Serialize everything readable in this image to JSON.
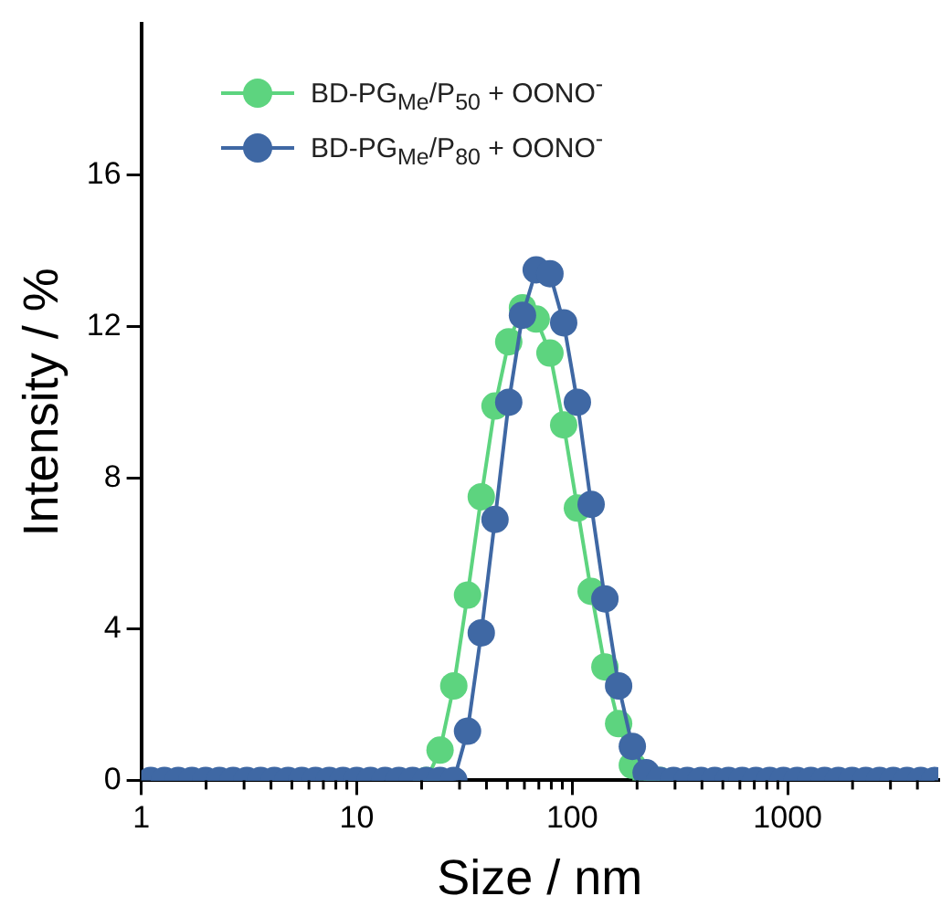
{
  "chart_data": {
    "type": "line",
    "xlabel": "Size / nm",
    "ylabel": "Intensity / %",
    "log": "x",
    "xlim": [
      1,
      5000
    ],
    "xticks": [
      1,
      10,
      100,
      1000
    ],
    "ylim": [
      0,
      20
    ],
    "yticks": [
      0,
      4,
      8,
      12,
      16
    ],
    "grid": false,
    "legend": "top left",
    "marker": "circle",
    "line_style": "solid",
    "x": [
      1.106,
      1.281,
      1.484,
      1.718,
      1.99,
      2.305,
      2.669,
      3.091,
      3.58,
      4.145,
      4.801,
      5.56,
      6.439,
      7.456,
      8.635,
      10.0,
      11.58,
      13.54,
      15.69,
      18.17,
      21.04,
      24.36,
      28.21,
      32.67,
      37.84,
      43.82,
      50.75,
      58.77,
      68.06,
      78.82,
      91.28,
      105.7,
      122.4,
      141.8,
      164.2,
      190.1,
      220.2,
      255.0,
      295.3,
      342.0,
      396.1,
      458.7,
      531.2,
      615.1,
      712.4,
      825.0,
      955.4,
      1106,
      1281,
      1484,
      1718,
      1990,
      2305,
      2669,
      3091,
      3580,
      4145,
      4801
    ],
    "series": [
      {
        "name": "BD-PG$_{Me}$/P$_{50}$ + OONO$^{-}$",
        "color": "#5dd47f",
        "values": [
          null,
          null,
          null,
          null,
          null,
          null,
          null,
          null,
          null,
          null,
          null,
          null,
          null,
          null,
          null,
          null,
          null,
          null,
          null,
          null,
          0,
          0.8,
          2.5,
          4.9,
          7.5,
          9.9,
          11.6,
          12.5,
          12.2,
          11.3,
          9.4,
          7.2,
          5.0,
          3.0,
          1.5,
          0.4,
          0,
          0,
          null,
          null,
          null,
          null,
          null,
          null,
          null,
          null,
          null,
          null,
          null,
          null,
          null,
          null,
          null,
          null,
          null,
          null,
          null,
          null
        ]
      },
      {
        "name": "BD-PG$_{Me}$/P$_{80}$ + OONO$^{-}$",
        "color": "#3f68a4",
        "values": [
          0,
          0,
          0,
          0,
          0,
          0,
          0,
          0,
          0,
          0,
          0,
          0,
          0,
          0,
          0,
          0,
          0,
          0,
          0,
          0,
          0,
          0,
          0,
          1.3,
          3.9,
          6.9,
          10.0,
          12.3,
          13.5,
          13.4,
          12.1,
          10.0,
          7.3,
          4.8,
          2.5,
          0.9,
          0.2,
          0,
          0,
          0,
          0,
          0,
          0,
          0,
          0,
          0,
          0,
          0,
          0,
          0,
          0,
          0,
          0,
          0,
          0,
          0,
          0,
          0
        ]
      }
    ]
  }
}
